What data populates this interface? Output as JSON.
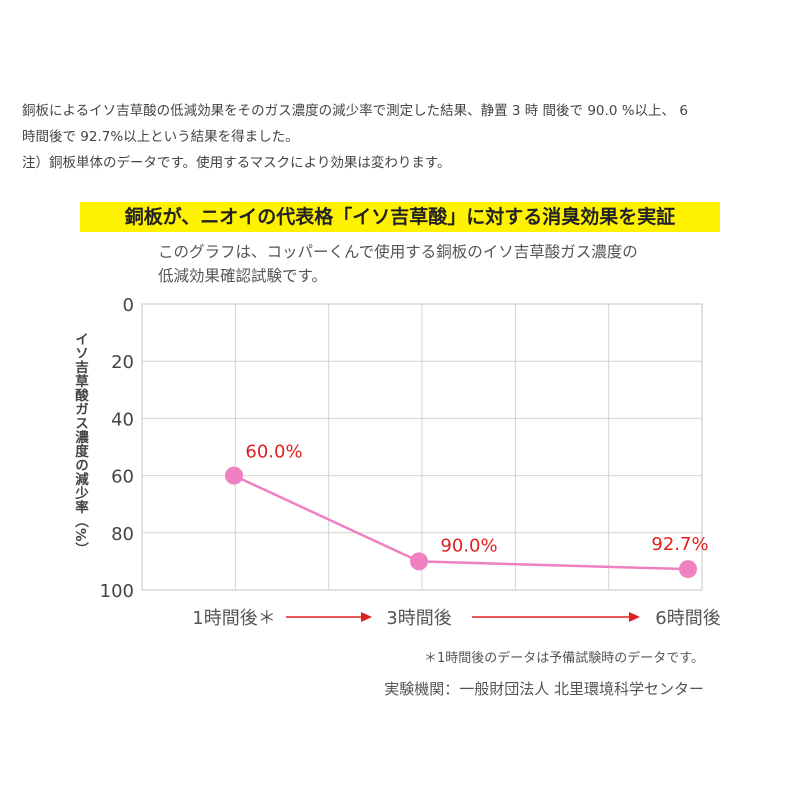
{
  "intro": {
    "line1": "銅板によるイソ吉草酸の低減効果をそのガス濃度の減少率で測定した結果、静置 3 時 間後で 90.0 %以上、 6",
    "line2": "時間後で 92.7%以上という結果を得ました。",
    "note": "注）銅板単体のデータです。使用するマスクにより効果は変わります。"
  },
  "banner": "銅板が、ニオイの代表格「イソ吉草酸」に対する消臭効果を実証",
  "subtitle": {
    "line1": "このグラフは、コッパーくんで使用する銅板のイソ吉草酸ガス濃度の",
    "line2": "低減効果確認試験です。"
  },
  "chart_data": {
    "type": "line",
    "ylabel": "イソ吉草酸ガス濃度の減少率（%）",
    "ylim": [
      0,
      100
    ],
    "y_inverted": true,
    "yticks": [
      0,
      20,
      40,
      60,
      80,
      100
    ],
    "categories": [
      "1時間後＊",
      "3時間後",
      "6時間後"
    ],
    "series": [
      {
        "values": [
          60.0,
          90.0,
          92.7
        ],
        "labels": [
          "60.0%",
          "90.0%",
          "92.7%"
        ]
      }
    ],
    "grid": true,
    "line_color": "#f081c0",
    "label_color": "#e02020",
    "arrow_color": "#e02020"
  },
  "footnote": "＊1時間後のデータは予備試験時のデータです。",
  "source": "実験機関：一般財団法人 北里環境科学センター"
}
